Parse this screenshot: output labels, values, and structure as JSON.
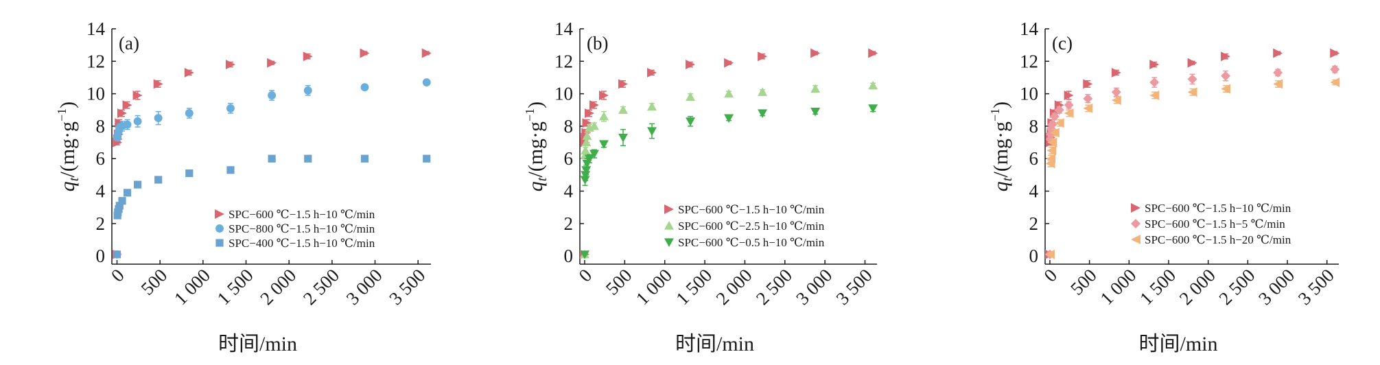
{
  "chart_data": [
    {
      "type": "scatter",
      "panel_label": "(a)",
      "ylabel_q": "q",
      "ylabel_sub": "t",
      "ylabel_unit": "/(mg·g",
      "ylabel_sup": "−1",
      "ylabel_close": ")",
      "xlabel": "时间/min",
      "xlim": [
        -60,
        3650
      ],
      "ylim": [
        -0.5,
        14
      ],
      "xticks": [
        0,
        500,
        1000,
        1500,
        2000,
        2500,
        3000,
        3500
      ],
      "xtick_labels": [
        "0",
        "500",
        "1 000",
        "1 500",
        "2 000",
        "2 500",
        "3 000",
        "3 500"
      ],
      "yticks": [
        0,
        2,
        4,
        6,
        8,
        10,
        12,
        14
      ],
      "ytick_labels": [
        "0",
        "2",
        "4",
        "6",
        "8",
        "10",
        "12",
        "14"
      ],
      "grid": false,
      "legend_position": "lower-right",
      "series": [
        {
          "name": "SPC−600 ℃−1.5 h−10 ℃/min",
          "marker": "triangle-right",
          "color": "#d9666f",
          "x": [
            0,
            5,
            10,
            20,
            30,
            60,
            120,
            240,
            480,
            840,
            1320,
            1800,
            2220,
            2880,
            3600
          ],
          "y": [
            0.1,
            7.0,
            7.2,
            7.5,
            8.2,
            8.8,
            9.3,
            9.9,
            10.6,
            11.3,
            11.8,
            11.9,
            12.3,
            12.5,
            12.5
          ],
          "err": [
            0,
            0.15,
            0.15,
            0.2,
            0.2,
            0.2,
            0.2,
            0.25,
            0.2,
            0.15,
            0.15,
            0.1,
            0.15,
            0.1,
            0.1
          ]
        },
        {
          "name": "SPC−800 ℃−1.5 h−10 ℃/min",
          "marker": "circle",
          "color": "#6aaedb",
          "x": [
            0,
            5,
            10,
            20,
            30,
            60,
            120,
            240,
            480,
            840,
            1320,
            1800,
            2220,
            2880,
            3600
          ],
          "y": [
            0.1,
            7.3,
            7.5,
            7.7,
            7.9,
            8.0,
            8.1,
            8.3,
            8.5,
            8.8,
            9.1,
            9.9,
            10.2,
            10.4,
            10.7
          ],
          "err": [
            0,
            0.2,
            0.2,
            0.25,
            0.25,
            0.3,
            0.3,
            0.35,
            0.4,
            0.3,
            0.3,
            0.3,
            0.3,
            0.1,
            0.1
          ]
        },
        {
          "name": "SPC−400 ℃−1.5 h−10 ℃/min",
          "marker": "square",
          "color": "#6aa3cf",
          "x": [
            0,
            5,
            10,
            20,
            30,
            60,
            120,
            240,
            480,
            840,
            1320,
            1800,
            2220,
            2880,
            3600
          ],
          "y": [
            0.1,
            2.5,
            2.7,
            2.9,
            3.1,
            3.4,
            3.9,
            4.4,
            4.7,
            5.1,
            5.3,
            6.0,
            6.0,
            6.0,
            6.0
          ],
          "err": [
            0,
            0.1,
            0.1,
            0.1,
            0.1,
            0.1,
            0.1,
            0.1,
            0.1,
            0.1,
            0.1,
            0.1,
            0.1,
            0.1,
            0.1
          ]
        }
      ]
    },
    {
      "type": "scatter",
      "panel_label": "(b)",
      "ylabel_q": "q",
      "ylabel_sub": "t",
      "ylabel_unit": "/(mg·g",
      "ylabel_sup": "−1",
      "ylabel_close": ")",
      "xlabel": "时间/min",
      "xlim": [
        -60,
        3650
      ],
      "ylim": [
        -0.5,
        14
      ],
      "xticks": [
        0,
        500,
        1000,
        1500,
        2000,
        2500,
        3000,
        3500
      ],
      "xtick_labels": [
        "0",
        "500",
        "1 000",
        "1 500",
        "2 000",
        "2 500",
        "3 000",
        "3 500"
      ],
      "yticks": [
        0,
        2,
        4,
        6,
        8,
        10,
        12,
        14
      ],
      "ytick_labels": [
        "0",
        "2",
        "4",
        "6",
        "8",
        "10",
        "12",
        "14"
      ],
      "grid": false,
      "legend_position": "lower-right",
      "series": [
        {
          "name": "SPC−600 ℃−1.5 h−10 ℃/min",
          "marker": "triangle-right",
          "color": "#d9666f",
          "x": [
            0,
            5,
            10,
            20,
            30,
            60,
            120,
            240,
            480,
            840,
            1320,
            1800,
            2220,
            2880,
            3600
          ],
          "y": [
            0.1,
            7.0,
            7.3,
            7.6,
            8.2,
            8.8,
            9.3,
            9.9,
            10.6,
            11.3,
            11.8,
            11.9,
            12.3,
            12.5,
            12.5
          ],
          "err": [
            0,
            0.15,
            0.15,
            0.2,
            0.2,
            0.2,
            0.2,
            0.25,
            0.2,
            0.15,
            0.15,
            0.1,
            0.15,
            0.1,
            0.1
          ]
        },
        {
          "name": "SPC−600 ℃−2.5 h−10 ℃/min",
          "marker": "triangle-up",
          "color": "#a5d58f",
          "x": [
            0,
            5,
            10,
            20,
            30,
            60,
            120,
            240,
            480,
            840,
            1320,
            1800,
            2220,
            2880,
            3600
          ],
          "y": [
            0.1,
            6.2,
            6.5,
            7.0,
            7.4,
            7.9,
            8.0,
            8.6,
            9.0,
            9.2,
            9.8,
            10.0,
            10.1,
            10.3,
            10.5
          ],
          "err": [
            0,
            0.2,
            0.2,
            0.2,
            0.2,
            0.2,
            0.2,
            0.3,
            0.2,
            0.2,
            0.2,
            0.15,
            0.15,
            0.2,
            0.15
          ]
        },
        {
          "name": "SPC−600 ℃−0.5 h−10 ℃/min",
          "marker": "triangle-down",
          "color": "#3fae4a",
          "x": [
            0,
            5,
            10,
            20,
            30,
            60,
            120,
            240,
            480,
            840,
            1320,
            1800,
            2220,
            2880,
            3600
          ],
          "y": [
            0.1,
            4.7,
            5.0,
            5.3,
            5.7,
            6.0,
            6.3,
            6.9,
            7.3,
            7.7,
            8.3,
            8.5,
            8.8,
            8.9,
            9.1
          ],
          "err": [
            0,
            0.35,
            0.35,
            0.3,
            0.3,
            0.25,
            0.25,
            0.2,
            0.5,
            0.45,
            0.3,
            0.15,
            0.15,
            0.15,
            0.2
          ]
        }
      ]
    },
    {
      "type": "scatter",
      "panel_label": "(c)",
      "ylabel_q": "q",
      "ylabel_sub": "t",
      "ylabel_unit": "/(mg·g",
      "ylabel_sup": "−1",
      "ylabel_close": ")",
      "xlabel": "时间/min",
      "xlim": [
        -60,
        3650
      ],
      "ylim": [
        -0.5,
        14
      ],
      "xticks": [
        0,
        500,
        1000,
        1500,
        2000,
        2500,
        3000,
        3500
      ],
      "xtick_labels": [
        "0",
        "500",
        "1 000",
        "1 500",
        "2 000",
        "2 500",
        "3 000",
        "3 500"
      ],
      "yticks": [
        0,
        2,
        4,
        6,
        8,
        10,
        12,
        14
      ],
      "ytick_labels": [
        "0",
        "2",
        "4",
        "6",
        "8",
        "10",
        "12",
        "14"
      ],
      "grid": false,
      "legend_position": "lower-right",
      "series": [
        {
          "name": "SPC−600 ℃−1.5 h−10 ℃/min",
          "marker": "triangle-right",
          "color": "#d9666f",
          "x": [
            0,
            5,
            10,
            20,
            30,
            60,
            120,
            240,
            480,
            840,
            1320,
            1800,
            2220,
            2880,
            3600
          ],
          "y": [
            0.1,
            7.0,
            7.3,
            7.6,
            8.2,
            8.8,
            9.3,
            9.9,
            10.6,
            11.3,
            11.8,
            11.9,
            12.3,
            12.5,
            12.5
          ],
          "err": [
            0,
            0.15,
            0.15,
            0.2,
            0.2,
            0.2,
            0.2,
            0.25,
            0.2,
            0.15,
            0.15,
            0.1,
            0.15,
            0.1,
            0.1
          ]
        },
        {
          "name": "SPC−600 ℃−1.5 h−5 ℃/min",
          "marker": "diamond",
          "color": "#ec9aa1",
          "x": [
            0,
            5,
            10,
            20,
            30,
            60,
            120,
            240,
            480,
            840,
            1320,
            1800,
            2220,
            2880,
            3600
          ],
          "y": [
            0.1,
            7.2,
            7.5,
            7.8,
            8.1,
            8.6,
            9.0,
            9.3,
            9.7,
            10.1,
            10.7,
            10.9,
            11.1,
            11.3,
            11.5
          ],
          "err": [
            0,
            0.2,
            0.2,
            0.2,
            0.2,
            0.2,
            0.2,
            0.2,
            0.25,
            0.25,
            0.3,
            0.3,
            0.3,
            0.2,
            0.2
          ]
        },
        {
          "name": "SPC−600 ℃−1.5 h−20 ℃/min",
          "marker": "triangle-left",
          "color": "#f3b47c",
          "x": [
            0,
            5,
            10,
            20,
            30,
            60,
            120,
            240,
            480,
            840,
            1320,
            1800,
            2220,
            2880,
            3600
          ],
          "y": [
            0.1,
            5.7,
            6.0,
            6.5,
            7.0,
            7.6,
            8.2,
            8.8,
            9.1,
            9.6,
            9.9,
            10.1,
            10.3,
            10.6,
            10.7
          ],
          "err": [
            0,
            0.2,
            0.2,
            0.2,
            0.2,
            0.2,
            0.2,
            0.2,
            0.2,
            0.2,
            0.2,
            0.2,
            0.2,
            0.2,
            0.15
          ]
        }
      ]
    }
  ]
}
